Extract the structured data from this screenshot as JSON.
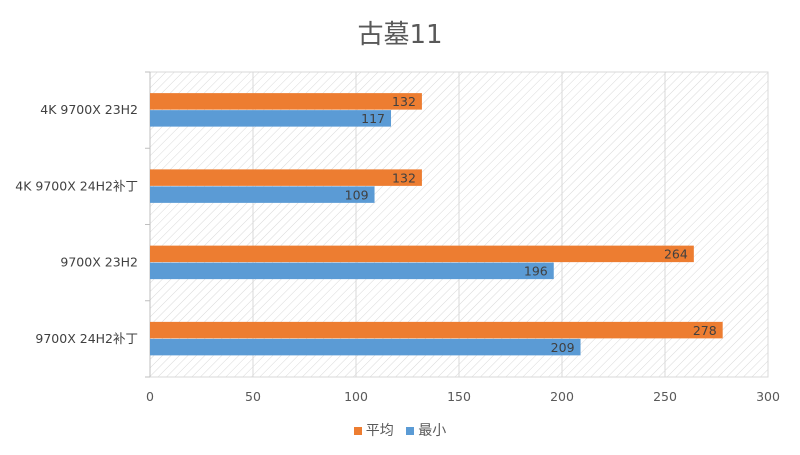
{
  "chart_data": {
    "type": "bar",
    "orientation": "horizontal",
    "title": "古墓11",
    "categories": [
      "4K 9700X 23H2",
      "4K 9700X 24H2补丁",
      "9700X 23H2",
      "9700X 24H2补丁"
    ],
    "series": [
      {
        "name": "平均",
        "color": "#ED7D31",
        "values": [
          132,
          132,
          264,
          278
        ]
      },
      {
        "name": "最小",
        "color": "#5B9BD5",
        "values": [
          117,
          109,
          196,
          209
        ]
      }
    ],
    "xlim": [
      0,
      300
    ],
    "xticks": [
      "0",
      "50",
      "100",
      "150",
      "200",
      "250",
      "300"
    ],
    "grid": true,
    "legend": "bottom",
    "data_labels": true
  }
}
